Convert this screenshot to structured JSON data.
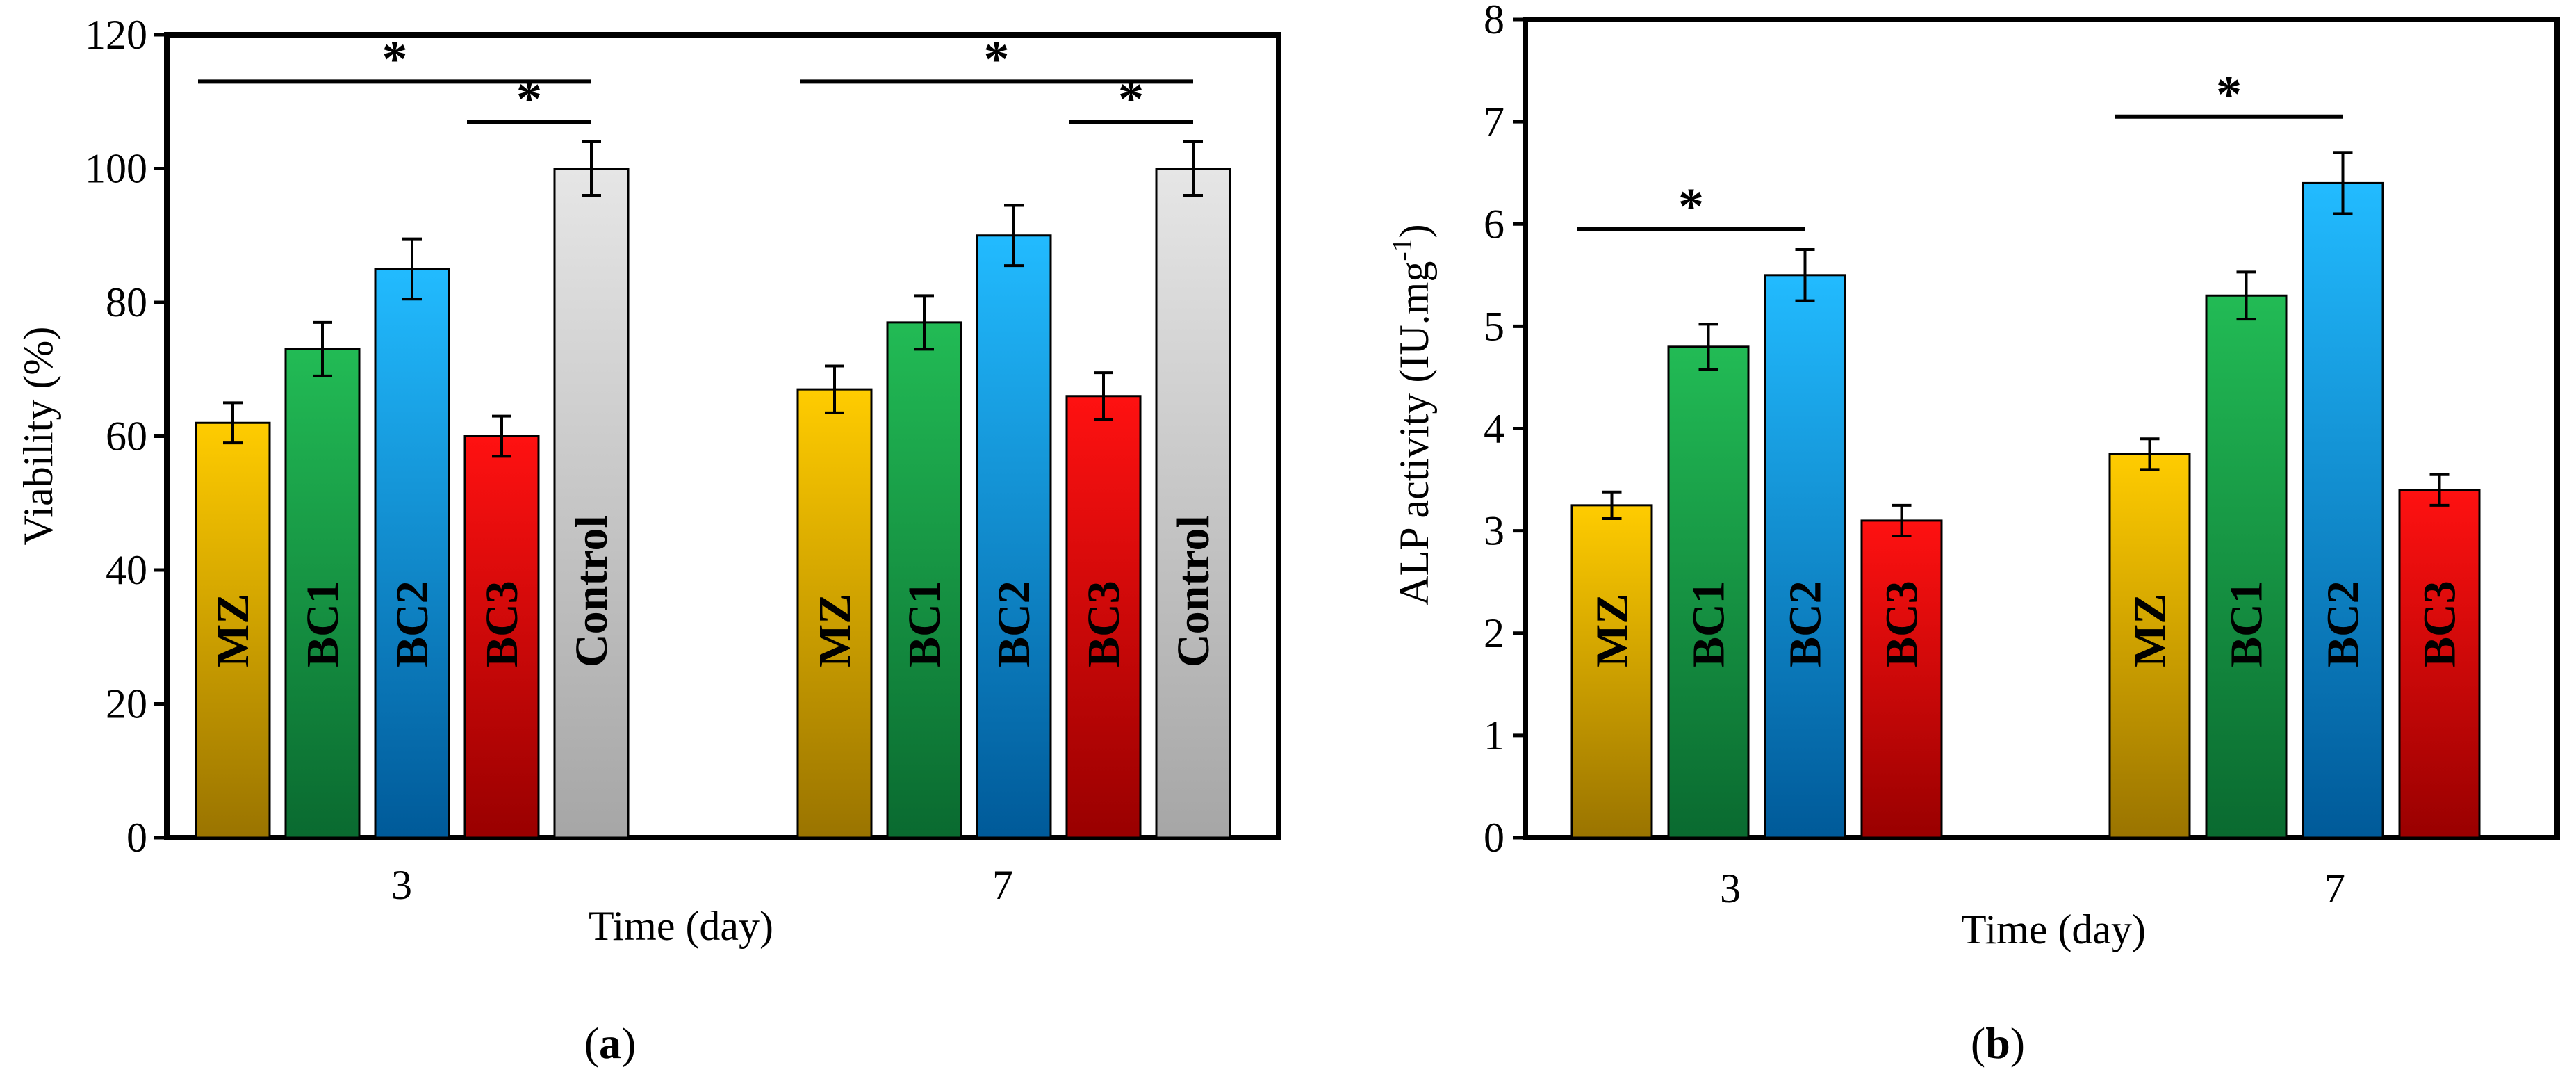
{
  "colors": {
    "MZ": [
      "#ffcc00",
      "#9a7400"
    ],
    "BC1": [
      "#22bb55",
      "#0a6a30"
    ],
    "BC2": [
      "#22bbff",
      "#005a99"
    ],
    "BC3": [
      "#ff1111",
      "#990000"
    ],
    "Control": [
      "#e6e6e6",
      "#a6a6a6"
    ]
  },
  "chart_data": [
    {
      "id": "a",
      "panel_label_prefix": "(",
      "panel_label_letter": "a",
      "panel_label_suffix": ")",
      "type": "bar",
      "xlabel": "Time (day)",
      "ylabel": "Viability (%)",
      "ylim": [
        0,
        120
      ],
      "yticks": [
        "0",
        "20",
        "40",
        "60",
        "80",
        "100",
        "120"
      ],
      "categories": [
        "3",
        "7"
      ],
      "series": [
        {
          "name": "MZ",
          "values": [
            62,
            67
          ],
          "errors": [
            3,
            3.5
          ]
        },
        {
          "name": "BC1",
          "values": [
            73,
            77
          ],
          "errors": [
            4,
            4
          ]
        },
        {
          "name": "BC2",
          "values": [
            85,
            90
          ],
          "errors": [
            4.5,
            4.5
          ]
        },
        {
          "name": "BC3",
          "values": [
            60,
            66
          ],
          "errors": [
            3,
            3.5
          ]
        },
        {
          "name": "Control",
          "values": [
            100,
            100
          ],
          "errors": [
            4,
            4
          ]
        }
      ],
      "significance": [
        {
          "category": 0,
          "from": 0,
          "to": 4,
          "y": 113,
          "label": "*"
        },
        {
          "category": 0,
          "from": 3,
          "to": 4,
          "y": 107,
          "label": "*"
        },
        {
          "category": 1,
          "from": 0,
          "to": 4,
          "y": 113,
          "label": "*"
        },
        {
          "category": 1,
          "from": 3,
          "to": 4,
          "y": 107,
          "label": "*"
        }
      ]
    },
    {
      "id": "b",
      "panel_label_prefix": "(",
      "panel_label_letter": "b",
      "panel_label_suffix": ")",
      "type": "bar",
      "xlabel": "Time (day)",
      "ylabel_main": "ALP activity (IU.mg",
      "ylabel_sup": "-1",
      "ylabel_end": ")",
      "ylim": [
        0,
        8
      ],
      "yticks": [
        "0",
        "1",
        "2",
        "3",
        "4",
        "5",
        "6",
        "7",
        "8"
      ],
      "categories": [
        "3",
        "7"
      ],
      "series": [
        {
          "name": "MZ",
          "values": [
            3.25,
            3.75
          ],
          "errors": [
            0.13,
            0.15
          ]
        },
        {
          "name": "BC1",
          "values": [
            4.8,
            5.3
          ],
          "errors": [
            0.22,
            0.23
          ]
        },
        {
          "name": "BC2",
          "values": [
            5.5,
            6.4
          ],
          "errors": [
            0.25,
            0.3
          ]
        },
        {
          "name": "BC3",
          "values": [
            3.1,
            3.4
          ],
          "errors": [
            0.15,
            0.15
          ]
        }
      ],
      "significance": [
        {
          "category": 0,
          "from": 0,
          "to": 2,
          "y": 5.95,
          "label": "*"
        },
        {
          "category": 1,
          "from": 0,
          "to": 2,
          "y": 7.05,
          "label": "*"
        }
      ]
    }
  ]
}
